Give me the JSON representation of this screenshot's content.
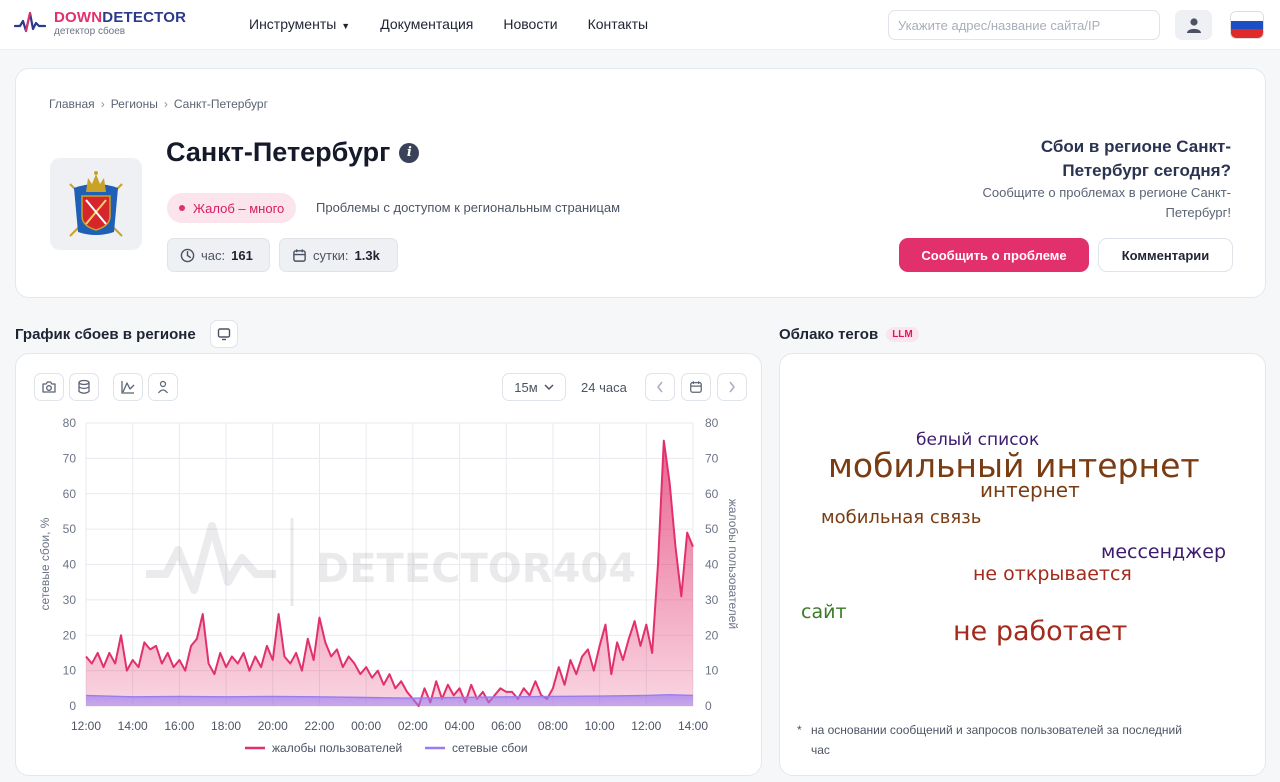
{
  "header": {
    "logo_down": "DOWN",
    "logo_detector": "DETECTOR",
    "logo_subtitle": "детектор сбоев",
    "nav": [
      {
        "label": "Инструменты"
      },
      {
        "label": "Документация"
      },
      {
        "label": "Новости"
      },
      {
        "label": "Контакты"
      }
    ],
    "search_placeholder": "Укажите адрес/название сайта/IP"
  },
  "breadcrumbs": [
    "Главная",
    "Регионы",
    "Санкт-Петербург"
  ],
  "region": {
    "title": "Санкт-Петербург",
    "status": "Жалоб – много",
    "status_description": "Проблемы с доступом к региональным страницам",
    "stat_hour_label": "час:",
    "stat_hour_value": "161",
    "stat_day_label": "сутки:",
    "stat_day_value": "1.3k"
  },
  "ask": {
    "title": "Сбои в регионе Санкт-Петербург сегодня?",
    "subtitle": "Сообщите о проблемах в регионе Санкт-Петербург!",
    "report_button": "Сообщить о проблеме",
    "comments_button": "Комментарии"
  },
  "chart_section": {
    "title": "График сбоев в регионе",
    "interval": "15м",
    "period": "24 часа",
    "watermark": "DETECTOR404"
  },
  "chart_data": {
    "type": "area",
    "y_left_label": "сетевые сбои, %",
    "y_right_label": "жалобы пользователей",
    "ylim": [
      0,
      80
    ],
    "y_ticks": [
      0,
      10,
      20,
      30,
      40,
      50,
      60,
      70,
      80
    ],
    "x_range": [
      12,
      38
    ],
    "x_ticks": [
      {
        "x": 12,
        "label": "12:00"
      },
      {
        "x": 14,
        "label": "14:00"
      },
      {
        "x": 16,
        "label": "16:00"
      },
      {
        "x": 18,
        "label": "18:00"
      },
      {
        "x": 20,
        "label": "20:00"
      },
      {
        "x": 22,
        "label": "22:00"
      },
      {
        "x": 24,
        "label": "00:00"
      },
      {
        "x": 26,
        "label": "02:00"
      },
      {
        "x": 28,
        "label": "04:00"
      },
      {
        "x": 30,
        "label": "06:00"
      },
      {
        "x": 32,
        "label": "08:00"
      },
      {
        "x": 34,
        "label": "10:00"
      },
      {
        "x": 36,
        "label": "12:00"
      },
      {
        "x": 38,
        "label": "14:00"
      }
    ],
    "grid": true,
    "legend": "bottom",
    "series": [
      {
        "name": "жалобы пользователей",
        "color": "#e2306c",
        "points": [
          [
            12.0,
            14
          ],
          [
            12.25,
            12
          ],
          [
            12.5,
            15
          ],
          [
            12.75,
            11
          ],
          [
            13.0,
            15
          ],
          [
            13.25,
            12
          ],
          [
            13.5,
            20
          ],
          [
            13.75,
            10
          ],
          [
            14.0,
            13
          ],
          [
            14.25,
            11
          ],
          [
            14.5,
            18
          ],
          [
            14.75,
            16
          ],
          [
            15.0,
            17
          ],
          [
            15.25,
            12
          ],
          [
            15.5,
            15
          ],
          [
            15.75,
            11
          ],
          [
            16.0,
            13
          ],
          [
            16.25,
            10
          ],
          [
            16.5,
            17
          ],
          [
            16.75,
            19
          ],
          [
            17.0,
            26
          ],
          [
            17.25,
            12
          ],
          [
            17.5,
            9
          ],
          [
            17.75,
            15
          ],
          [
            18.0,
            11
          ],
          [
            18.25,
            14
          ],
          [
            18.5,
            12
          ],
          [
            18.75,
            15
          ],
          [
            19.0,
            10
          ],
          [
            19.25,
            14
          ],
          [
            19.5,
            11
          ],
          [
            19.75,
            17
          ],
          [
            20.0,
            13
          ],
          [
            20.25,
            26
          ],
          [
            20.5,
            14
          ],
          [
            20.75,
            12
          ],
          [
            21.0,
            15
          ],
          [
            21.25,
            10
          ],
          [
            21.5,
            19
          ],
          [
            21.75,
            13
          ],
          [
            22.0,
            25
          ],
          [
            22.25,
            18
          ],
          [
            22.5,
            14
          ],
          [
            22.75,
            16
          ],
          [
            23.0,
            11
          ],
          [
            23.25,
            14
          ],
          [
            23.5,
            12
          ],
          [
            23.75,
            9
          ],
          [
            24.0,
            11
          ],
          [
            24.25,
            8
          ],
          [
            24.5,
            10
          ],
          [
            24.75,
            6
          ],
          [
            25.0,
            9
          ],
          [
            25.25,
            5
          ],
          [
            25.5,
            7
          ],
          [
            25.75,
            4
          ],
          [
            26.0,
            2
          ],
          [
            26.25,
            0
          ],
          [
            26.5,
            5
          ],
          [
            26.75,
            1
          ],
          [
            27.0,
            7
          ],
          [
            27.25,
            2
          ],
          [
            27.5,
            6
          ],
          [
            27.75,
            3
          ],
          [
            28.0,
            5
          ],
          [
            28.25,
            1
          ],
          [
            28.5,
            6
          ],
          [
            28.75,
            2
          ],
          [
            29.0,
            4
          ],
          [
            29.25,
            1
          ],
          [
            29.5,
            3
          ],
          [
            29.75,
            5
          ],
          [
            30.0,
            4
          ],
          [
            30.25,
            4
          ],
          [
            30.5,
            2
          ],
          [
            30.75,
            5
          ],
          [
            31.0,
            3
          ],
          [
            31.25,
            7
          ],
          [
            31.5,
            3
          ],
          [
            31.75,
            2
          ],
          [
            32.0,
            5
          ],
          [
            32.25,
            11
          ],
          [
            32.5,
            6
          ],
          [
            32.75,
            13
          ],
          [
            33.0,
            9
          ],
          [
            33.25,
            14
          ],
          [
            33.5,
            16
          ],
          [
            33.75,
            10
          ],
          [
            34.0,
            17
          ],
          [
            34.25,
            23
          ],
          [
            34.5,
            9
          ],
          [
            34.75,
            18
          ],
          [
            35.0,
            13
          ],
          [
            35.25,
            19
          ],
          [
            35.5,
            24
          ],
          [
            35.75,
            17
          ],
          [
            36.0,
            23
          ],
          [
            36.25,
            15
          ],
          [
            36.5,
            40
          ],
          [
            36.75,
            75
          ],
          [
            37.0,
            63
          ],
          [
            37.25,
            45
          ],
          [
            37.5,
            31
          ],
          [
            37.75,
            49
          ],
          [
            38.0,
            45
          ]
        ]
      },
      {
        "name": "сетевые сбои",
        "color": "#9b7cf0",
        "points": [
          [
            12.0,
            3
          ],
          [
            14.0,
            2.6
          ],
          [
            16.0,
            2.7
          ],
          [
            18.0,
            2.6
          ],
          [
            20.0,
            2.7
          ],
          [
            22.0,
            2.6
          ],
          [
            24.0,
            2.4
          ],
          [
            26.0,
            2.2
          ],
          [
            28.0,
            2.4
          ],
          [
            30.0,
            2.6
          ],
          [
            32.0,
            2.7
          ],
          [
            34.0,
            2.8
          ],
          [
            36.0,
            3.0
          ],
          [
            37.0,
            3.2
          ],
          [
            38.0,
            3.0
          ]
        ]
      }
    ]
  },
  "tags_section": {
    "title": "Облако тегов",
    "badge": "LLM",
    "tags": [
      {
        "text": "белый список",
        "color": "#3d1a6e"
      },
      {
        "text": "мобильный интернет",
        "color": "#7a3c12"
      },
      {
        "text": "интернет",
        "color": "#7a3c12"
      },
      {
        "text": "мобильная связь",
        "color": "#7a3c12"
      },
      {
        "text": "мессенджер",
        "color": "#3d1a6e"
      },
      {
        "text": "не открывается",
        "color": "#a32a1c"
      },
      {
        "text": "сайт",
        "color": "#3c7a2a"
      },
      {
        "text": "не работает",
        "color": "#a32a1c"
      }
    ],
    "note": "на основании сообщений и запросов пользователей за последний час"
  }
}
